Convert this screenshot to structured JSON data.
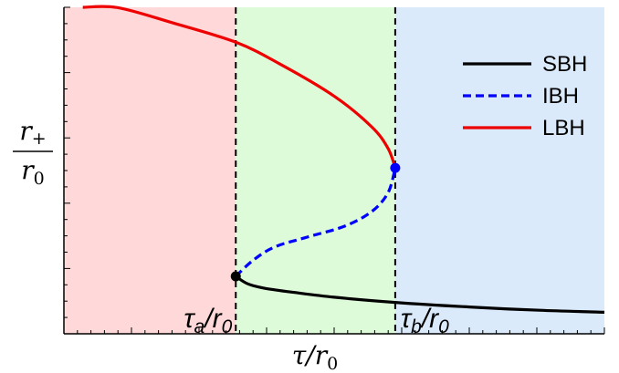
{
  "chart_data": {
    "type": "line",
    "xlabel": "τ/r0",
    "ylabel": {
      "numerator": "r+",
      "denominator": "r0"
    },
    "xlim": [
      0,
      1
    ],
    "ylim": [
      0,
      1
    ],
    "regions": [
      {
        "from": 0.0,
        "to": 0.318,
        "color": "#ffd9d9"
      },
      {
        "from": 0.318,
        "to": 0.613,
        "color": "#ddfbd9"
      },
      {
        "from": 0.613,
        "to": 1.0,
        "color": "#daeafb"
      }
    ],
    "vlines": [
      {
        "x": 0.318,
        "label": "τa/r0"
      },
      {
        "x": 0.613,
        "label": "τb/r0"
      }
    ],
    "series": [
      {
        "name": "SBH",
        "color": "#000000",
        "style": "solid",
        "points": [
          [
            0.318,
            0.176
          ],
          [
            0.34,
            0.153
          ],
          [
            0.37,
            0.14
          ],
          [
            0.42,
            0.128
          ],
          [
            0.5,
            0.112
          ],
          [
            0.613,
            0.096
          ],
          [
            0.75,
            0.082
          ],
          [
            0.88,
            0.072
          ],
          [
            1.0,
            0.066
          ]
        ]
      },
      {
        "name": "IBH",
        "color": "#0000ff",
        "style": "dashed",
        "points": [
          [
            0.318,
            0.176
          ],
          [
            0.35,
            0.225
          ],
          [
            0.39,
            0.266
          ],
          [
            0.45,
            0.296
          ],
          [
            0.52,
            0.33
          ],
          [
            0.57,
            0.375
          ],
          [
            0.6,
            0.433
          ],
          [
            0.613,
            0.508
          ]
        ]
      },
      {
        "name": "LBH",
        "color": "#ee0000",
        "style": "solid",
        "points": [
          [
            0.613,
            0.508
          ],
          [
            0.6,
            0.567
          ],
          [
            0.57,
            0.633
          ],
          [
            0.5,
            0.728
          ],
          [
            0.4,
            0.826
          ],
          [
            0.318,
            0.893
          ],
          [
            0.2,
            0.953
          ],
          [
            0.1,
            0.999
          ],
          [
            0.035,
            1.0
          ]
        ]
      }
    ],
    "special_points": [
      {
        "x": 0.318,
        "y": 0.176,
        "color": "#000000"
      },
      {
        "x": 0.613,
        "y": 0.508,
        "color": "#0000ff"
      }
    ],
    "legend": {
      "placement": "top-right",
      "entries": [
        "SBH",
        "IBH",
        "LBH"
      ]
    }
  }
}
